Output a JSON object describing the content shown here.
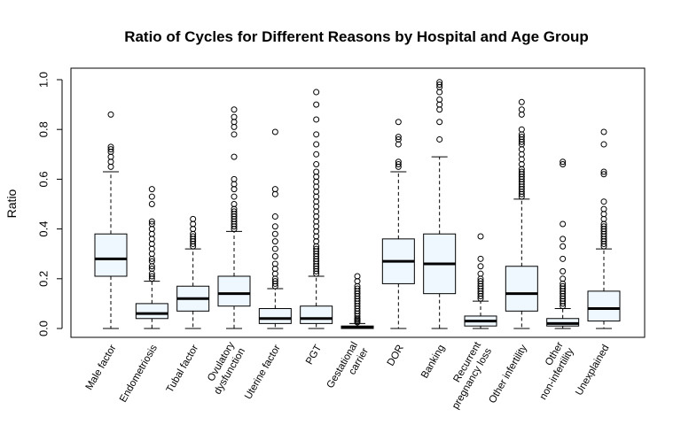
{
  "chart_data": {
    "type": "boxplot",
    "title": "Ratio of Cycles for Different Reasons by Hospital and Age Group",
    "xlabel": "",
    "ylabel": "Ratio",
    "ylim": [
      0,
      1
    ],
    "yticks": [
      "0.0",
      "0.2",
      "0.4",
      "0.6",
      "0.8",
      "1.0"
    ],
    "box_fill": "#f0f8ff",
    "categories": [
      {
        "label": [
          "Male factor"
        ],
        "min": 0.0,
        "q1": 0.21,
        "median": 0.28,
        "q3": 0.38,
        "max": 0.63,
        "outliers": [
          0.65,
          0.67,
          0.69,
          0.71,
          0.72,
          0.73,
          0.86
        ]
      },
      {
        "label": [
          "Endometriosis"
        ],
        "min": 0.0,
        "q1": 0.04,
        "median": 0.06,
        "q3": 0.1,
        "max": 0.19,
        "outliers": [
          0.2,
          0.21,
          0.22,
          0.24,
          0.25,
          0.27,
          0.28,
          0.3,
          0.32,
          0.34,
          0.36,
          0.38,
          0.4,
          0.42,
          0.43,
          0.5,
          0.53,
          0.56
        ]
      },
      {
        "label": [
          "Tubal factor"
        ],
        "min": 0.0,
        "q1": 0.07,
        "median": 0.12,
        "q3": 0.17,
        "max": 0.32,
        "outliers": [
          0.33,
          0.34,
          0.35,
          0.36,
          0.37,
          0.38,
          0.4,
          0.42,
          0.44
        ]
      },
      {
        "label": [
          "Ovulatory",
          "dysfunction"
        ],
        "min": 0.0,
        "q1": 0.09,
        "median": 0.14,
        "q3": 0.21,
        "max": 0.39,
        "outliers": [
          0.4,
          0.41,
          0.42,
          0.43,
          0.44,
          0.45,
          0.46,
          0.47,
          0.48,
          0.5,
          0.53,
          0.56,
          0.58,
          0.6,
          0.69,
          0.78,
          0.81,
          0.83,
          0.85,
          0.88
        ]
      },
      {
        "label": [
          "Uterine factor"
        ],
        "min": 0.0,
        "q1": 0.02,
        "median": 0.04,
        "q3": 0.08,
        "max": 0.16,
        "outliers": [
          0.17,
          0.18,
          0.19,
          0.2,
          0.22,
          0.24,
          0.26,
          0.29,
          0.32,
          0.35,
          0.38,
          0.41,
          0.45,
          0.54,
          0.56,
          0.79
        ]
      },
      {
        "label": [
          "PGT"
        ],
        "min": 0.0,
        "q1": 0.02,
        "median": 0.04,
        "q3": 0.09,
        "max": 0.21,
        "outliers": [
          0.22,
          0.23,
          0.24,
          0.25,
          0.26,
          0.27,
          0.28,
          0.29,
          0.3,
          0.31,
          0.32,
          0.33,
          0.35,
          0.37,
          0.39,
          0.41,
          0.43,
          0.45,
          0.47,
          0.49,
          0.51,
          0.53,
          0.55,
          0.57,
          0.59,
          0.61,
          0.63,
          0.66,
          0.7,
          0.74,
          0.78,
          0.84,
          0.9,
          0.95
        ]
      },
      {
        "label": [
          "Gestational",
          "carrier"
        ],
        "min": 0.0,
        "q1": 0.0,
        "median": 0.005,
        "q3": 0.01,
        "max": 0.02,
        "outliers": [
          0.025,
          0.03,
          0.035,
          0.04,
          0.05,
          0.06,
          0.07,
          0.08,
          0.09,
          0.1,
          0.11,
          0.12,
          0.13,
          0.14,
          0.15,
          0.16,
          0.17,
          0.19,
          0.21
        ]
      },
      {
        "label": [
          "DOR"
        ],
        "min": 0.0,
        "q1": 0.18,
        "median": 0.27,
        "q3": 0.36,
        "max": 0.63,
        "outliers": [
          0.65,
          0.66,
          0.67,
          0.74,
          0.76,
          0.77,
          0.83
        ]
      },
      {
        "label": [
          "Banking"
        ],
        "min": 0.0,
        "q1": 0.14,
        "median": 0.26,
        "q3": 0.38,
        "max": 0.69,
        "outliers": [
          0.76,
          0.83,
          0.88,
          0.9,
          0.92,
          0.95,
          0.97,
          0.98,
          0.99
        ]
      },
      {
        "label": [
          "Recurrent",
          "pregnancy loss"
        ],
        "min": 0.0,
        "q1": 0.01,
        "median": 0.03,
        "q3": 0.05,
        "max": 0.11,
        "outliers": [
          0.12,
          0.13,
          0.14,
          0.15,
          0.16,
          0.17,
          0.18,
          0.19,
          0.2,
          0.22,
          0.25,
          0.28,
          0.37
        ]
      },
      {
        "label": [
          "Other infertility"
        ],
        "min": 0.0,
        "q1": 0.07,
        "median": 0.14,
        "q3": 0.25,
        "max": 0.52,
        "outliers": [
          0.53,
          0.54,
          0.55,
          0.56,
          0.57,
          0.58,
          0.59,
          0.6,
          0.61,
          0.62,
          0.63,
          0.64,
          0.66,
          0.68,
          0.7,
          0.72,
          0.74,
          0.75,
          0.76,
          0.77,
          0.78,
          0.8,
          0.86,
          0.88,
          0.91
        ]
      },
      {
        "label": [
          "Other",
          "non-infertility"
        ],
        "min": 0.0,
        "q1": 0.01,
        "median": 0.02,
        "q3": 0.04,
        "max": 0.08,
        "outliers": [
          0.09,
          0.1,
          0.11,
          0.12,
          0.13,
          0.14,
          0.15,
          0.16,
          0.17,
          0.18,
          0.2,
          0.23,
          0.28,
          0.33,
          0.36,
          0.42,
          0.66,
          0.67
        ]
      },
      {
        "label": [
          "Unexplained"
        ],
        "min": 0.0,
        "q1": 0.03,
        "median": 0.08,
        "q3": 0.15,
        "max": 0.32,
        "outliers": [
          0.33,
          0.34,
          0.35,
          0.36,
          0.37,
          0.38,
          0.39,
          0.4,
          0.41,
          0.42,
          0.44,
          0.46,
          0.48,
          0.51,
          0.62,
          0.63,
          0.74,
          0.79
        ]
      }
    ]
  }
}
